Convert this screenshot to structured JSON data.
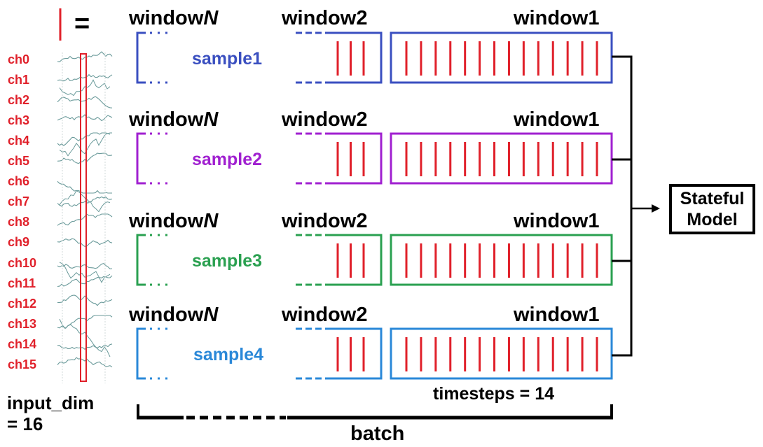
{
  "legend": {
    "symbol": "="
  },
  "channels": [
    "ch0",
    "ch1",
    "ch2",
    "ch3",
    "ch4",
    "ch5",
    "ch6",
    "ch7",
    "ch8",
    "ch9",
    "ch10",
    "ch11",
    "ch12",
    "ch13",
    "ch14",
    "ch15"
  ],
  "input_dim": {
    "line1": "input_dim",
    "line2": "= 16"
  },
  "window_labels": {
    "n_prefix": "window",
    "n_suffix": "N",
    "second": "window2",
    "first": "window1"
  },
  "samples": [
    {
      "label": "sample1",
      "color": "#3a4fc0"
    },
    {
      "label": "sample2",
      "color": "#a020d0"
    },
    {
      "label": "sample3",
      "color": "#2aa050"
    },
    {
      "label": "sample4",
      "color": "#2a88d8"
    }
  ],
  "timesteps_label": "timesteps = 14",
  "timesteps_value": 14,
  "window2_ticks": 3,
  "batch_label": "batch",
  "model": {
    "line1": "Stateful",
    "line2": "Model"
  },
  "colors": {
    "red": "#e0202a",
    "signal": "#6a9a9a"
  }
}
